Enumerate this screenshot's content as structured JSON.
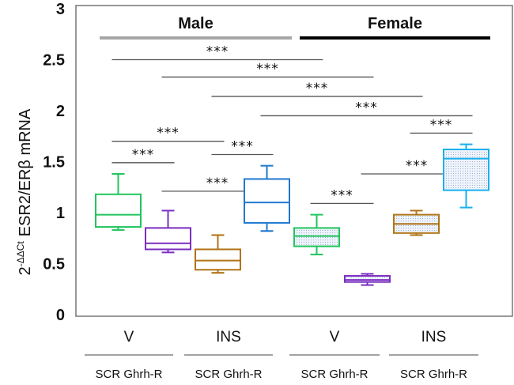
{
  "chart_data": {
    "type": "box",
    "title": "",
    "ylabel": "2^-ΔΔCt ESR2/ERβ mRNA",
    "ylabel_parts": {
      "base": "2",
      "sup": "-ΔΔCt",
      "main": "ESR2/ERβ mRNA"
    },
    "ylim": [
      0,
      3
    ],
    "yticks": [
      0,
      0.5,
      1,
      1.5,
      2,
      2.5,
      3
    ],
    "ytick_labels": [
      "0",
      "0.5",
      "1",
      "1.5",
      "2",
      "2.5",
      "3"
    ],
    "groups": [
      {
        "label": "Male",
        "line_color": "#a6a6a6"
      },
      {
        "label": "Female",
        "line_color": "#000000"
      }
    ],
    "treatments": [
      "V",
      "INS",
      "V",
      "INS"
    ],
    "subcategories": [
      "SCR  Ghrh-R",
      "SCR Ghrh-R",
      "SCR Ghrh-R",
      "SCR Ghrh-R"
    ],
    "boxes": [
      {
        "sex": "Male",
        "treatment": "V",
        "shRNA": "SCR",
        "color": "#22c55e",
        "pattern": false,
        "whisker_low": 0.83,
        "q1": 0.86,
        "median": 0.98,
        "q3": 1.18,
        "whisker_high": 1.38
      },
      {
        "sex": "Male",
        "treatment": "V",
        "shRNA": "Ghrh-R",
        "color": "#7b2fbf",
        "pattern": false,
        "whisker_low": 0.61,
        "q1": 0.64,
        "median": 0.7,
        "q3": 0.85,
        "whisker_high": 1.02
      },
      {
        "sex": "Male",
        "treatment": "INS",
        "shRNA": "SCR",
        "color": "#b07416",
        "pattern": false,
        "whisker_low": 0.41,
        "q1": 0.44,
        "median": 0.53,
        "q3": 0.64,
        "whisker_high": 0.78
      },
      {
        "sex": "Male",
        "treatment": "INS",
        "shRNA": "Ghrh-R",
        "color": "#1f78d1",
        "pattern": false,
        "whisker_low": 0.82,
        "q1": 0.9,
        "median": 1.1,
        "q3": 1.33,
        "whisker_high": 1.46
      },
      {
        "sex": "Female",
        "treatment": "V",
        "shRNA": "SCR",
        "color": "#22c55e",
        "pattern": true,
        "whisker_low": 0.59,
        "q1": 0.67,
        "median": 0.77,
        "q3": 0.85,
        "whisker_high": 0.98
      },
      {
        "sex": "Female",
        "treatment": "V",
        "shRNA": "Ghrh-R",
        "color": "#7b2fbf",
        "pattern": true,
        "whisker_low": 0.29,
        "q1": 0.32,
        "median": 0.34,
        "q3": 0.38,
        "whisker_high": 0.4
      },
      {
        "sex": "Female",
        "treatment": "INS",
        "shRNA": "SCR",
        "color": "#b07416",
        "pattern": true,
        "whisker_low": 0.78,
        "q1": 0.8,
        "median": 0.89,
        "q3": 0.98,
        "whisker_high": 1.02
      },
      {
        "sex": "Female",
        "treatment": "INS",
        "shRNA": "Ghrh-R",
        "color": "#1ab0ec",
        "pattern": true,
        "whisker_low": 1.05,
        "q1": 1.22,
        "median": 1.53,
        "q3": 1.62,
        "whisker_high": 1.67
      }
    ],
    "significance": [
      {
        "from": 0,
        "to": 4,
        "y": 2.5,
        "label": "***"
      },
      {
        "from": 1,
        "to": 5,
        "y": 2.33,
        "label": "***"
      },
      {
        "from": 2,
        "to": 6,
        "y": 2.14,
        "label": "***"
      },
      {
        "from": 3,
        "to": 7,
        "y": 1.95,
        "label": "***"
      },
      {
        "from": 0,
        "to": 2,
        "y": 1.7,
        "label": "***"
      },
      {
        "from": 2,
        "to": 3,
        "y": 1.57,
        "label": "***"
      },
      {
        "from": 0,
        "to": 1,
        "y": 1.49,
        "label": "***"
      },
      {
        "from": 6,
        "to": 7,
        "y": 1.78,
        "label": "***"
      },
      {
        "from": 1,
        "to": 3,
        "y": 1.21,
        "label": "***"
      },
      {
        "from": 5,
        "to": 7,
        "y": 1.38,
        "label": "***"
      },
      {
        "from": 4,
        "to": 5,
        "y": 1.09,
        "label": "***"
      }
    ],
    "legend": "none",
    "grid": false
  }
}
